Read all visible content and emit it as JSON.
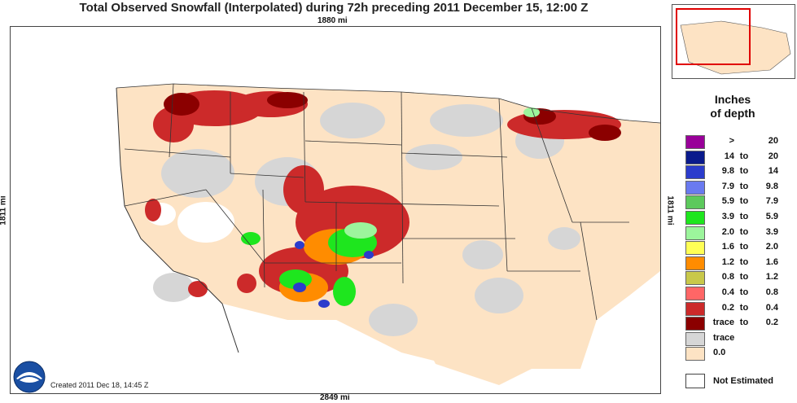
{
  "title": "Total Observed Snowfall (Interpolated) during 72h preceding 2011 December 15, 12:00 Z",
  "distances": {
    "top": "1880 mi",
    "bottom": "2849 mi",
    "left": "1811 mi",
    "right": "1811 mi"
  },
  "created": "Created 2011 Dec 18, 14:45 Z",
  "legend": {
    "title_line1": "Inches",
    "title_line2": "of depth",
    "rows": [
      {
        "lo": ">",
        "to": "",
        "hi": "20",
        "color": "#990099"
      },
      {
        "lo": "14",
        "to": "to",
        "hi": "20",
        "color": "#0a1a8c"
      },
      {
        "lo": "9.8",
        "to": "to",
        "hi": "14",
        "color": "#2b3ccc"
      },
      {
        "lo": "7.9",
        "to": "to",
        "hi": "9.8",
        "color": "#6a7af0"
      },
      {
        "lo": "5.9",
        "to": "to",
        "hi": "7.9",
        "color": "#5cc95c"
      },
      {
        "lo": "3.9",
        "to": "to",
        "hi": "5.9",
        "color": "#1ee61e"
      },
      {
        "lo": "2.0",
        "to": "to",
        "hi": "3.9",
        "color": "#9cf59c"
      },
      {
        "lo": "1.6",
        "to": "to",
        "hi": "2.0",
        "color": "#ffff55"
      },
      {
        "lo": "1.2",
        "to": "to",
        "hi": "1.6",
        "color": "#ff8c00"
      },
      {
        "lo": "0.8",
        "to": "to",
        "hi": "1.2",
        "color": "#c8c84a"
      },
      {
        "lo": "0.4",
        "to": "to",
        "hi": "0.8",
        "color": "#ff6666"
      },
      {
        "lo": "0.2",
        "to": "to",
        "hi": "0.4",
        "color": "#cc2a2a"
      },
      {
        "lo": "trace",
        "to": "to",
        "hi": "0.2",
        "color": "#8b0000"
      },
      {
        "single": "trace",
        "color": "#d6d6d6"
      },
      {
        "single": "0.0",
        "color": "#fde3c4"
      }
    ],
    "not_estimated": "Not Estimated"
  },
  "colors": {
    "no_snow": "#fde3c4",
    "trace": "#d6d6d6",
    "border": "#333333"
  },
  "logo": "noaa-logo"
}
